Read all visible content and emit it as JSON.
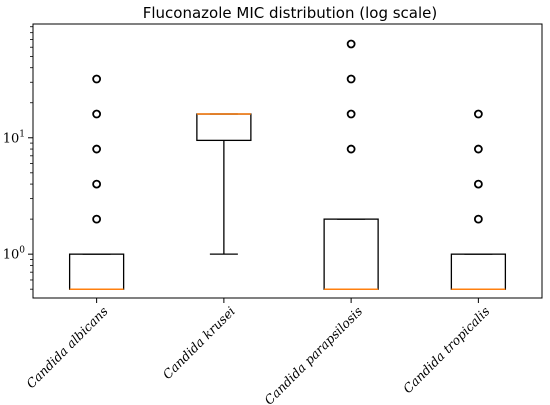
{
  "chart_data": {
    "type": "box",
    "title": "Fluconazole MIC distribution (log scale)",
    "xlabel": "",
    "ylabel": "",
    "yscale": "log",
    "ylim": [
      0.42,
      95
    ],
    "y_ticks": [
      {
        "value": 1,
        "label_base": "10",
        "label_exp": "0"
      },
      {
        "value": 10,
        "label_base": "10",
        "label_exp": "1"
      }
    ],
    "grid": false,
    "colors": {
      "median": "#ff7f0e",
      "box": "#000000",
      "outlier_edge": "#000000"
    },
    "categories": [
      "Candida albicans",
      "Candida krusei",
      "Candida parapsilosis",
      "Candida tropicalis"
    ],
    "boxes": [
      {
        "category": "Candida albicans",
        "q1": 0.5,
        "median": 0.5,
        "q3": 1,
        "whisker_low": 0.5,
        "whisker_high": 1,
        "outliers": [
          2,
          4,
          8,
          16,
          32
        ]
      },
      {
        "category": "Candida krusei",
        "q1": 9.5,
        "median": 16,
        "q3": 16,
        "whisker_low": 1,
        "whisker_high": 16,
        "outliers": []
      },
      {
        "category": "Candida parapsilosis",
        "q1": 0.5,
        "median": 0.5,
        "q3": 2,
        "whisker_low": 0.5,
        "whisker_high": 2,
        "outliers": [
          8,
          16,
          32,
          64
        ]
      },
      {
        "category": "Candida tropicalis",
        "q1": 0.5,
        "median": 0.5,
        "q3": 1,
        "whisker_low": 0.5,
        "whisker_high": 1,
        "outliers": [
          2,
          4,
          8,
          16
        ]
      }
    ]
  }
}
